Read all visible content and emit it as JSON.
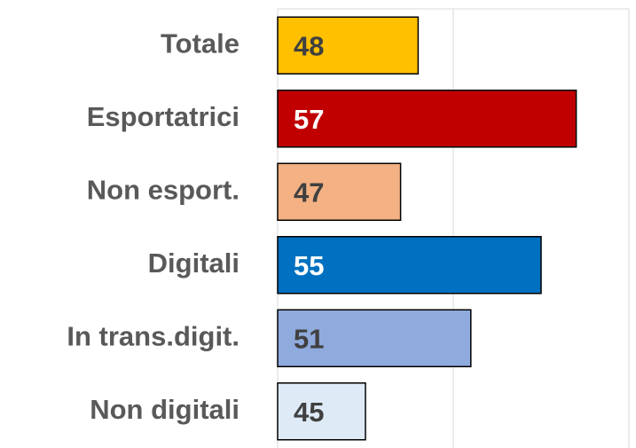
{
  "chart_data": {
    "type": "bar",
    "orientation": "horizontal",
    "categories": [
      "Totale",
      "Esportatrici",
      "Non esport.",
      "Digitali",
      "In trans.digit.",
      "Non digitali"
    ],
    "values": [
      48,
      57,
      47,
      55,
      51,
      45
    ],
    "colors": [
      "#FFC000",
      "#C00000",
      "#F4B183",
      "#0070C0",
      "#8FAADC",
      "#DEEBF7"
    ],
    "xlim": [
      40,
      60
    ],
    "xticks": [
      40,
      50,
      60
    ],
    "grid": true
  }
}
